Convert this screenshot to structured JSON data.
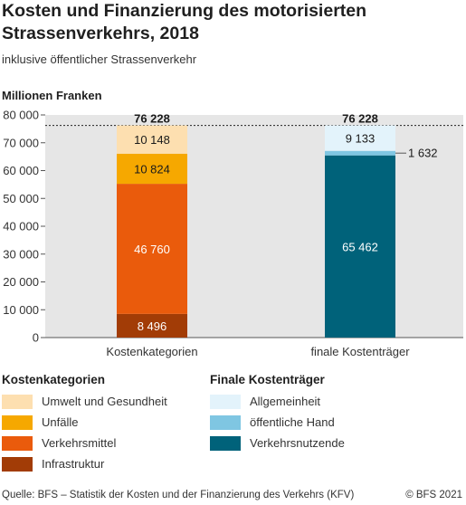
{
  "title": "Kosten und Finanzierung des motorisierten Strassenverkehrs, 2018",
  "subtitle": "inklusive öffentlicher Strassenverkehr",
  "unit_label": "Millionen Franken",
  "source": "Quelle: BFS – Statistik der Kosten und der Finanzierung des Verkehrs (KFV)",
  "copyright": "© BFS 2021",
  "legend": {
    "left_title": "Kostenkategorien",
    "right_title": "Finale Kostenträger"
  },
  "chart_data": {
    "type": "bar",
    "stacked": true,
    "ylim": [
      0,
      80000
    ],
    "yticks": [
      0,
      10000,
      20000,
      30000,
      40000,
      50000,
      60000,
      70000,
      80000
    ],
    "ytick_labels": [
      "0",
      "10 000",
      "20 000",
      "30 000",
      "40 000",
      "50 000",
      "60 000",
      "70 000",
      "80 000"
    ],
    "grid": false,
    "total_reference_line": 76228,
    "bars": [
      {
        "category": "Kostenkategorien",
        "total": 76228,
        "total_label": "76 228",
        "segments": [
          {
            "name": "Infrastruktur",
            "value": 8496,
            "label": "8 496",
            "color": "#a23c06",
            "label_color": "#ffffff"
          },
          {
            "name": "Verkehrsmittel",
            "value": 46760,
            "label": "46 760",
            "color": "#ea5b0c",
            "label_color": "#ffffff"
          },
          {
            "name": "Unfälle",
            "value": 10824,
            "label": "10 824",
            "color": "#f6a800",
            "label_color": "#1a1a1a"
          },
          {
            "name": "Umwelt und Gesundheit",
            "value": 10148,
            "label": "10 148",
            "color": "#fddfb0",
            "label_color": "#1a1a1a"
          }
        ]
      },
      {
        "category": "finale Kostenträger",
        "total": 76228,
        "total_label": "76 228",
        "segments": [
          {
            "name": "Verkehrsnutzende",
            "value": 65462,
            "label": "65 462",
            "color": "#00627a",
            "label_color": "#ffffff"
          },
          {
            "name": "öffentliche Hand",
            "value": 1632,
            "label": "1 632",
            "color": "#7fc6e2",
            "label_color": "#1a1a1a",
            "label_outside": true
          },
          {
            "name": "Allgemeinheit",
            "value": 9133,
            "label": "9 133",
            "color": "#e3f3fb",
            "label_color": "#1a1a1a"
          }
        ]
      }
    ],
    "legend_groups": [
      {
        "title": "Kostenkategorien",
        "items": [
          {
            "name": "Umwelt und Gesundheit",
            "color": "#fddfb0"
          },
          {
            "name": "Unfälle",
            "color": "#f6a800"
          },
          {
            "name": "Verkehrsmittel",
            "color": "#ea5b0c"
          },
          {
            "name": "Infrastruktur",
            "color": "#a23c06"
          }
        ]
      },
      {
        "title": "Finale Kostenträger",
        "items": [
          {
            "name": "Allgemeinheit",
            "color": "#e3f3fb"
          },
          {
            "name": "öffentliche Hand",
            "color": "#7fc6e2"
          },
          {
            "name": "Verkehrsnutzende",
            "color": "#00627a"
          }
        ]
      }
    ],
    "plot_background": "#e6e6e6"
  }
}
